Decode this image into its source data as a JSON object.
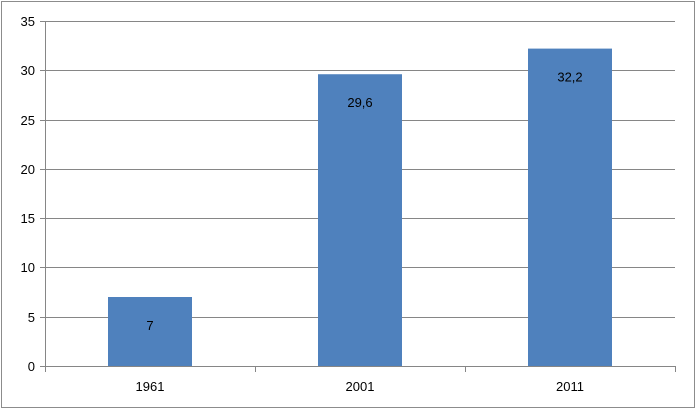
{
  "chart_data": {
    "type": "bar",
    "title": "",
    "xlabel": "",
    "ylabel": "",
    "categories": [
      "1961",
      "2001",
      "2011"
    ],
    "values": [
      7,
      29.6,
      32.2
    ],
    "value_labels": [
      "7",
      "29,6",
      "32,2"
    ],
    "ylim": [
      0,
      35
    ],
    "yticks": [
      0,
      5,
      10,
      15,
      20,
      25,
      30,
      35
    ],
    "grid": true,
    "legend": "none",
    "bar_color": "#4f81bd",
    "gridline_color": "#868686"
  }
}
